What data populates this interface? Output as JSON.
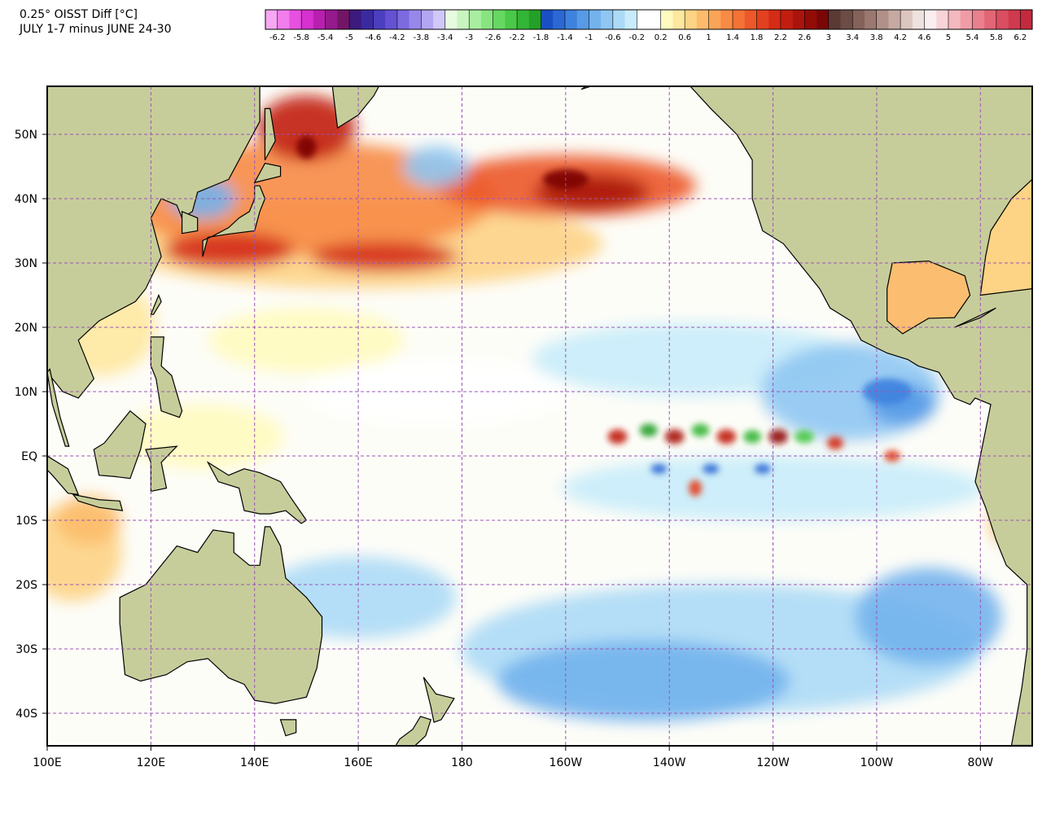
{
  "header": {
    "title": "0.25° OISST Diff [°C]",
    "subtitle": "JULY 1-7 minus JUNE 24-30"
  },
  "colorbar": {
    "lim": [
      -6.4,
      6.4
    ],
    "labels": [
      -6.2,
      -5.8,
      -5.4,
      -5,
      -4.6,
      -4.2,
      -3.8,
      -3.4,
      -3,
      -2.6,
      -2.2,
      -1.8,
      -1.4,
      -1,
      -0.6,
      -0.2,
      0.2,
      0.6,
      1,
      1.4,
      1.8,
      2.2,
      2.6,
      3,
      3.4,
      3.8,
      4.2,
      4.6,
      5,
      5.4,
      5.8,
      6.2
    ],
    "colors": [
      "#f7a8f3",
      "#f27ded",
      "#e850e0",
      "#d632cf",
      "#b81fae",
      "#951a8c",
      "#731567",
      "#3c1a7e",
      "#3a2aa0",
      "#4b3fbf",
      "#6452d3",
      "#7c6ae0",
      "#9787ea",
      "#b2a6f2",
      "#cfc8f8",
      "#e6fbe0",
      "#c8f5bf",
      "#a9eea0",
      "#88e47f",
      "#66d862",
      "#49c947",
      "#33b535",
      "#23a027",
      "#1a4fc4",
      "#2c68d4",
      "#3f82de",
      "#579ae6",
      "#73b2ed",
      "#8fc6f2",
      "#acdaf6",
      "#c8ecfa",
      "#ffffff",
      "#ffffff",
      "#fffbbf",
      "#fee8a0",
      "#fdd385",
      "#fcbc6c",
      "#faa457",
      "#f78b45",
      "#f37236",
      "#ec5829",
      "#e2401e",
      "#d42c16",
      "#c11e10",
      "#aa140c",
      "#920c08",
      "#7a0606",
      "#5a3a34",
      "#6e4c46",
      "#84625a",
      "#9a7870",
      "#b09088",
      "#c6aaa2",
      "#dcc6c0",
      "#eee2de",
      "#fbeef0",
      "#f8d4d8",
      "#f4b8bf",
      "#ef9ca6",
      "#e9808d",
      "#e26676",
      "#d94e60",
      "#cf3a4e",
      "#c42a3e"
    ]
  },
  "map": {
    "lon_labels": [
      "100E",
      "120E",
      "140E",
      "160E",
      "180",
      "160W",
      "140W",
      "120W",
      "100W",
      "80W"
    ],
    "lat_labels": [
      "50N",
      "40N",
      "30N",
      "20N",
      "10N",
      "EQ",
      "10S",
      "20S",
      "30S",
      "40S"
    ]
  }
}
